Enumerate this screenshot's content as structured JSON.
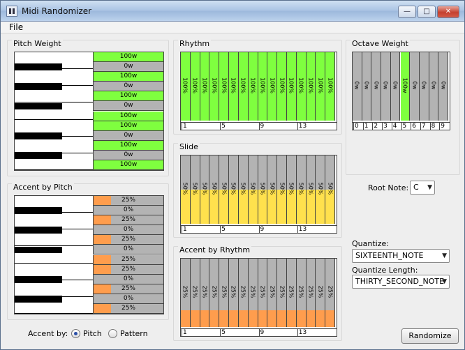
{
  "window": {
    "title": "Midi Randomizer",
    "minimize": "—",
    "maximize": "□",
    "close": "✕"
  },
  "menu": {
    "file": "File"
  },
  "colors": {
    "green": "#7fff3f",
    "orange": "#ff9d4d",
    "yellow": "#ffe14d",
    "gray": "#b3b3b3"
  },
  "pitch_weight": {
    "title": "Pitch Weight",
    "rows": [
      {
        "label": "100w",
        "value": 1
      },
      {
        "label": "0w",
        "value": 0
      },
      {
        "label": "100w",
        "value": 1
      },
      {
        "label": "0w",
        "value": 0
      },
      {
        "label": "100w",
        "value": 1
      },
      {
        "label": "0w",
        "value": 0
      },
      {
        "label": "100w",
        "value": 1
      },
      {
        "label": "100w",
        "value": 1
      },
      {
        "label": "0w",
        "value": 0
      },
      {
        "label": "100w",
        "value": 1
      },
      {
        "label": "0w",
        "value": 0
      },
      {
        "label": "100w",
        "value": 1
      }
    ]
  },
  "accent_by_pitch": {
    "title": "Accent by Pitch",
    "rows": [
      {
        "label": "25%",
        "value": 0.25
      },
      {
        "label": "0%",
        "value": 0
      },
      {
        "label": "25%",
        "value": 0.25
      },
      {
        "label": "0%",
        "value": 0
      },
      {
        "label": "25%",
        "value": 0.25
      },
      {
        "label": "0%",
        "value": 0
      },
      {
        "label": "25%",
        "value": 0.25
      },
      {
        "label": "25%",
        "value": 0.25
      },
      {
        "label": "0%",
        "value": 0
      },
      {
        "label": "25%",
        "value": 0.25
      },
      {
        "label": "0%",
        "value": 0
      },
      {
        "label": "25%",
        "value": 0.25
      }
    ]
  },
  "rhythm": {
    "title": "Rhythm",
    "bars": [
      {
        "label": "100%",
        "value": 1
      },
      {
        "label": "100%",
        "value": 1
      },
      {
        "label": "100%",
        "value": 1
      },
      {
        "label": "100%",
        "value": 1
      },
      {
        "label": "100%",
        "value": 1
      },
      {
        "label": "100%",
        "value": 1
      },
      {
        "label": "100%",
        "value": 1
      },
      {
        "label": "100%",
        "value": 1
      },
      {
        "label": "100%",
        "value": 1
      },
      {
        "label": "100%",
        "value": 1
      },
      {
        "label": "100%",
        "value": 1
      },
      {
        "label": "100%",
        "value": 1
      },
      {
        "label": "100%",
        "value": 1
      },
      {
        "label": "100%",
        "value": 1
      },
      {
        "label": "100%",
        "value": 1
      },
      {
        "label": "100%",
        "value": 1
      }
    ],
    "ticks": [
      "1",
      "5",
      "9",
      "13"
    ]
  },
  "slide": {
    "title": "Slide",
    "bars": [
      {
        "label": "50%",
        "value": 0.5
      },
      {
        "label": "50%",
        "value": 0.5
      },
      {
        "label": "50%",
        "value": 0.5
      },
      {
        "label": "50%",
        "value": 0.5
      },
      {
        "label": "50%",
        "value": 0.5
      },
      {
        "label": "50%",
        "value": 0.5
      },
      {
        "label": "50%",
        "value": 0.5
      },
      {
        "label": "50%",
        "value": 0.5
      },
      {
        "label": "50%",
        "value": 0.5
      },
      {
        "label": "50%",
        "value": 0.5
      },
      {
        "label": "50%",
        "value": 0.5
      },
      {
        "label": "50%",
        "value": 0.5
      },
      {
        "label": "50%",
        "value": 0.5
      },
      {
        "label": "50%",
        "value": 0.5
      },
      {
        "label": "50%",
        "value": 0.5
      },
      {
        "label": "50%",
        "value": 0.5
      }
    ],
    "ticks": [
      "1",
      "5",
      "9",
      "13"
    ]
  },
  "accent_by_rhythm": {
    "title": "Accent by Rhythm",
    "bars": [
      {
        "label": "25%",
        "value": 0.25
      },
      {
        "label": "25%",
        "value": 0.25
      },
      {
        "label": "25%",
        "value": 0.25
      },
      {
        "label": "25%",
        "value": 0.25
      },
      {
        "label": "25%",
        "value": 0.25
      },
      {
        "label": "25%",
        "value": 0.25
      },
      {
        "label": "25%",
        "value": 0.25
      },
      {
        "label": "25%",
        "value": 0.25
      },
      {
        "label": "25%",
        "value": 0.25
      },
      {
        "label": "25%",
        "value": 0.25
      },
      {
        "label": "25%",
        "value": 0.25
      },
      {
        "label": "25%",
        "value": 0.25
      },
      {
        "label": "25%",
        "value": 0.25
      },
      {
        "label": "25%",
        "value": 0.25
      },
      {
        "label": "25%",
        "value": 0.25
      },
      {
        "label": "25%",
        "value": 0.25
      }
    ],
    "ticks": [
      "1",
      "5",
      "9",
      "13"
    ]
  },
  "octave_weight": {
    "title": "Octave Weight",
    "bars": [
      {
        "label": "0w",
        "value": 0
      },
      {
        "label": "0w",
        "value": 0
      },
      {
        "label": "0w",
        "value": 0
      },
      {
        "label": "0w",
        "value": 0
      },
      {
        "label": "0w",
        "value": 0
      },
      {
        "label": "100w",
        "value": 1
      },
      {
        "label": "0w",
        "value": 0
      },
      {
        "label": "0w",
        "value": 0
      },
      {
        "label": "0w",
        "value": 0
      },
      {
        "label": "0w",
        "value": 0
      }
    ],
    "ticks": [
      "0",
      "1",
      "2",
      "3",
      "4",
      "5",
      "6",
      "7",
      "8",
      "9"
    ]
  },
  "root_note": {
    "label": "Root Note:",
    "value": "C"
  },
  "quantize": {
    "label": "Quantize:",
    "value": "SIXTEENTH_NOTE"
  },
  "quantize_length": {
    "label": "Quantize Length:",
    "value": "THIRTY_SECOND_NOTE"
  },
  "accent_by": {
    "label": "Accent by:",
    "option_pitch": "Pitch",
    "option_pattern": "Pattern",
    "selected": "Pitch"
  },
  "randomize": {
    "label": "Randomize"
  }
}
